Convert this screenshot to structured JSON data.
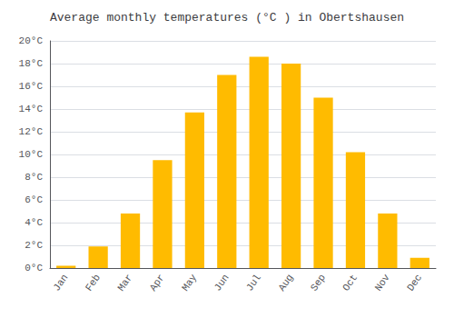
{
  "chart_data": {
    "type": "bar",
    "title": "Average monthly temperatures (°C ) in Obertshausen",
    "categories": [
      "Jan",
      "Feb",
      "Mar",
      "Apr",
      "May",
      "Jun",
      "Jul",
      "Aug",
      "Sep",
      "Oct",
      "Nov",
      "Dec"
    ],
    "values": [
      0.2,
      1.9,
      4.8,
      9.5,
      13.7,
      17.0,
      18.6,
      18.0,
      15.0,
      10.2,
      4.8,
      0.9
    ],
    "color": "#FFBB00",
    "ylim": [
      0,
      20
    ],
    "yticks": [
      {
        "value": 0,
        "label": "0°C"
      },
      {
        "value": 2,
        "label": "2°C"
      },
      {
        "value": 4,
        "label": "4°C"
      },
      {
        "value": 6,
        "label": "6°C"
      },
      {
        "value": 8,
        "label": "8°C"
      },
      {
        "value": 10,
        "label": "10°C"
      },
      {
        "value": 12,
        "label": "12°C"
      },
      {
        "value": 14,
        "label": "14°C"
      },
      {
        "value": 16,
        "label": "16°C"
      },
      {
        "value": 18,
        "label": "18°C"
      },
      {
        "value": 20,
        "label": "20°C"
      }
    ],
    "grid": true
  }
}
